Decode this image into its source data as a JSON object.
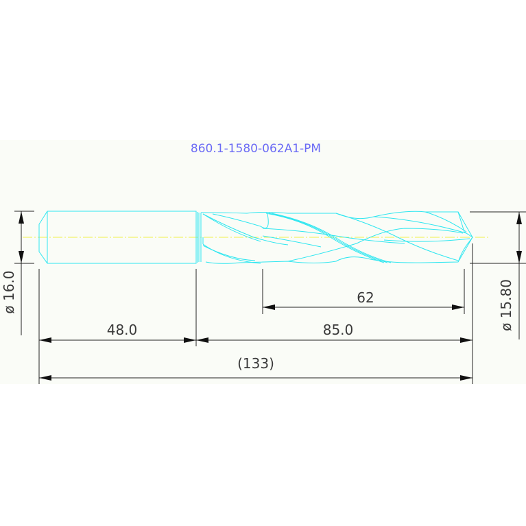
{
  "drawing": {
    "title": "860.1-1580-062A1-PM",
    "colors": {
      "background_band": "#fafcf7",
      "outline": "#2ee6f0",
      "centerline": "#f0f04a",
      "dimension": "#222222",
      "title": "#6b6bf5"
    },
    "dimensions": {
      "shank_diameter": "ø 16.0",
      "drill_diameter": "ø 15.80",
      "shank_length": "48.0",
      "body_length": "85.0",
      "flute_length": "62",
      "overall_length": "(133)"
    }
  }
}
